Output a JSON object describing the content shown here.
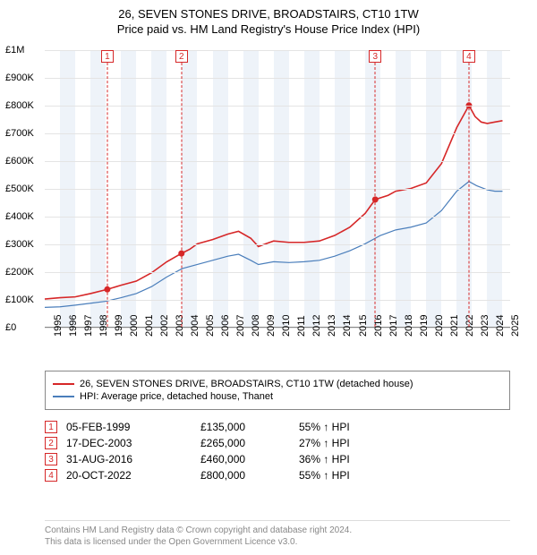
{
  "title": {
    "line1": "26, SEVEN STONES DRIVE, BROADSTAIRS, CT10 1TW",
    "line2": "Price paid vs. HM Land Registry's House Price Index (HPI)"
  },
  "chart": {
    "type": "line",
    "background_color": "#ffffff",
    "band_color": "#eef3f9",
    "grid_color": "#e4e4e4",
    "x": {
      "min": 1995,
      "max": 2025.5,
      "years": [
        1995,
        1996,
        1997,
        1998,
        1999,
        2000,
        2001,
        2002,
        2003,
        2004,
        2005,
        2006,
        2007,
        2008,
        2009,
        2010,
        2011,
        2012,
        2013,
        2014,
        2015,
        2016,
        2017,
        2018,
        2019,
        2020,
        2021,
        2022,
        2023,
        2024,
        2025
      ]
    },
    "y": {
      "min": 0,
      "max": 1000000,
      "ticks": [
        0,
        100000,
        200000,
        300000,
        400000,
        500000,
        600000,
        700000,
        800000,
        900000,
        1000000
      ],
      "labels": [
        "£0",
        "£100K",
        "£200K",
        "£300K",
        "£400K",
        "£500K",
        "£600K",
        "£700K",
        "£800K",
        "£900K",
        "£1M"
      ]
    },
    "series": [
      {
        "name": "26, SEVEN STONES DRIVE, BROADSTAIRS, CT10 1TW (detached house)",
        "color": "#d62728",
        "width": 1.6,
        "points": [
          [
            1995.0,
            100000
          ],
          [
            1996.0,
            105000
          ],
          [
            1997.0,
            108000
          ],
          [
            1998.0,
            120000
          ],
          [
            1999.1,
            135000
          ],
          [
            2000.0,
            150000
          ],
          [
            2001.0,
            165000
          ],
          [
            2002.0,
            195000
          ],
          [
            2003.0,
            235000
          ],
          [
            2003.96,
            265000
          ],
          [
            2004.5,
            280000
          ],
          [
            2005.0,
            300000
          ],
          [
            2006.0,
            315000
          ],
          [
            2007.0,
            335000
          ],
          [
            2007.7,
            345000
          ],
          [
            2008.5,
            320000
          ],
          [
            2009.0,
            290000
          ],
          [
            2009.5,
            300000
          ],
          [
            2010.0,
            310000
          ],
          [
            2011.0,
            305000
          ],
          [
            2012.0,
            305000
          ],
          [
            2013.0,
            310000
          ],
          [
            2014.0,
            330000
          ],
          [
            2015.0,
            360000
          ],
          [
            2016.0,
            410000
          ],
          [
            2016.66,
            460000
          ],
          [
            2017.5,
            475000
          ],
          [
            2018.0,
            490000
          ],
          [
            2019.0,
            500000
          ],
          [
            2020.0,
            520000
          ],
          [
            2021.0,
            590000
          ],
          [
            2022.0,
            720000
          ],
          [
            2022.8,
            800000
          ],
          [
            2023.2,
            760000
          ],
          [
            2023.6,
            740000
          ],
          [
            2024.0,
            735000
          ],
          [
            2024.5,
            740000
          ],
          [
            2025.0,
            745000
          ]
        ]
      },
      {
        "name": "HPI: Average price, detached house, Thanet",
        "color": "#4a7ebb",
        "width": 1.2,
        "points": [
          [
            1995.0,
            70000
          ],
          [
            1996.0,
            72000
          ],
          [
            1997.0,
            78000
          ],
          [
            1998.0,
            85000
          ],
          [
            1999.0,
            92000
          ],
          [
            2000.0,
            105000
          ],
          [
            2001.0,
            120000
          ],
          [
            2002.0,
            145000
          ],
          [
            2003.0,
            180000
          ],
          [
            2004.0,
            210000
          ],
          [
            2005.0,
            225000
          ],
          [
            2006.0,
            240000
          ],
          [
            2007.0,
            255000
          ],
          [
            2007.7,
            262000
          ],
          [
            2008.5,
            240000
          ],
          [
            2009.0,
            225000
          ],
          [
            2010.0,
            235000
          ],
          [
            2011.0,
            232000
          ],
          [
            2012.0,
            235000
          ],
          [
            2013.0,
            240000
          ],
          [
            2014.0,
            255000
          ],
          [
            2015.0,
            275000
          ],
          [
            2016.0,
            300000
          ],
          [
            2017.0,
            330000
          ],
          [
            2018.0,
            350000
          ],
          [
            2019.0,
            360000
          ],
          [
            2020.0,
            375000
          ],
          [
            2021.0,
            420000
          ],
          [
            2022.0,
            490000
          ],
          [
            2022.8,
            525000
          ],
          [
            2023.3,
            510000
          ],
          [
            2024.0,
            495000
          ],
          [
            2024.5,
            490000
          ],
          [
            2025.0,
            490000
          ]
        ]
      }
    ],
    "sale_markers": [
      {
        "n": "1",
        "x": 1999.1,
        "price": 135000
      },
      {
        "n": "2",
        "x": 2003.96,
        "price": 265000
      },
      {
        "n": "3",
        "x": 2016.66,
        "price": 460000
      },
      {
        "n": "4",
        "x": 2022.8,
        "price": 800000
      }
    ],
    "marker_dot_color": "#d62728",
    "marker_dot_radius": 3.5
  },
  "legend": {
    "items": [
      {
        "color": "#d62728",
        "label": "26, SEVEN STONES DRIVE, BROADSTAIRS, CT10 1TW (detached house)"
      },
      {
        "color": "#4a7ebb",
        "label": "HPI: Average price, detached house, Thanet"
      }
    ]
  },
  "sales": [
    {
      "n": "1",
      "date": "05-FEB-1999",
      "price": "£135,000",
      "pct": "55% ↑ HPI"
    },
    {
      "n": "2",
      "date": "17-DEC-2003",
      "price": "£265,000",
      "pct": "27% ↑ HPI"
    },
    {
      "n": "3",
      "date": "31-AUG-2016",
      "price": "£460,000",
      "pct": "36% ↑ HPI"
    },
    {
      "n": "4",
      "date": "20-OCT-2022",
      "price": "£800,000",
      "pct": "55% ↑ HPI"
    }
  ],
  "footer": {
    "line1": "Contains HM Land Registry data © Crown copyright and database right 2024.",
    "line2": "This data is licensed under the Open Government Licence v3.0."
  }
}
